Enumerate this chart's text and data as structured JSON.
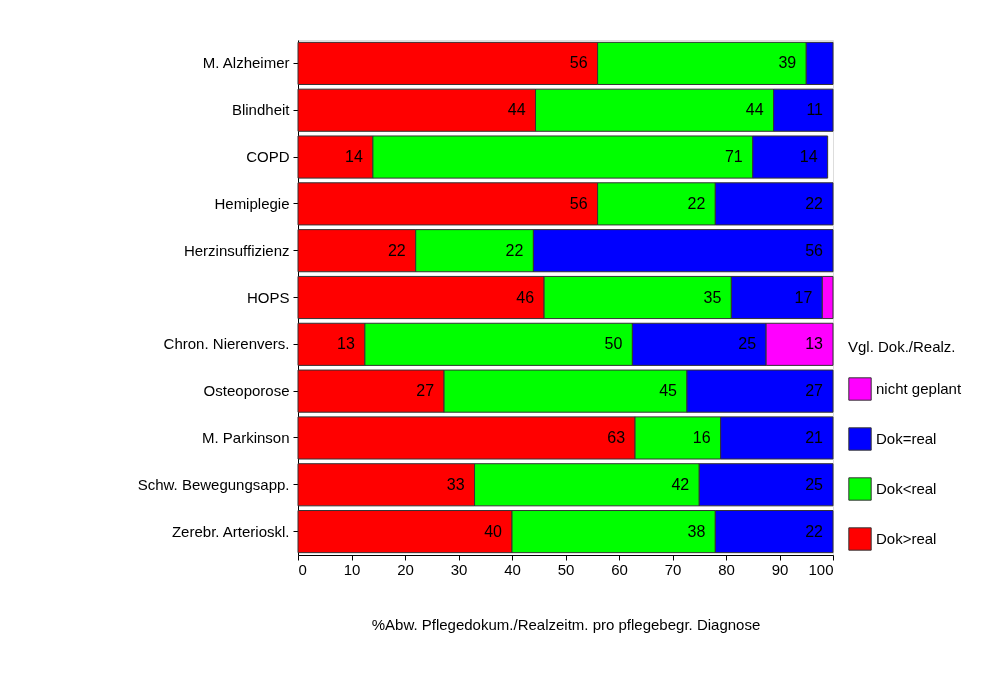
{
  "chart_data": {
    "type": "bar",
    "orientation": "horizontal",
    "stacked": true,
    "xlabel": "%Abw. Pflegedokum./Realzeitm. pro pflegebegr. Diagnose",
    "legend_title": "Vgl. Dok./Realz.",
    "legend": "right",
    "grid": false,
    "categories": [
      "M. Alzheimer",
      "Blindheit",
      "COPD",
      "Hemiplegie",
      "Herzinsuffizienz",
      "HOPS",
      "Chron. Nierenvers.",
      "Osteoporose",
      "M. Parkinson",
      "Schw. Bewegungsapp.",
      "Zerebr. Arterioskl."
    ],
    "xlim": [
      0,
      100
    ],
    "xticks": [
      0,
      10,
      20,
      30,
      40,
      50,
      60,
      70,
      80,
      90,
      100
    ],
    "series": [
      {
        "name": "Dok>real",
        "color": "#ff0000",
        "values": [
          56,
          44.4,
          14,
          56,
          22,
          46,
          12.5,
          27.3,
          63,
          33,
          40
        ],
        "value_labels": [
          "56",
          "44",
          "14",
          "56",
          "22",
          "46",
          "13",
          "27",
          "63",
          "33",
          "40"
        ]
      },
      {
        "name": "Dok<real",
        "color": "#00ff00",
        "values": [
          39,
          44.5,
          71,
          22,
          22,
          35,
          50,
          45.4,
          16,
          42,
          38
        ],
        "value_labels": [
          "39",
          "44",
          "71",
          "22",
          "22",
          "35",
          "50",
          "45",
          "16",
          "42",
          "38"
        ]
      },
      {
        "name": "Dok=real",
        "color": "#0000ff",
        "values": [
          5,
          11.1,
          14,
          22,
          56,
          17,
          25,
          27.3,
          21,
          25,
          22
        ],
        "value_labels": [
          null,
          "11",
          "14",
          "22",
          "56",
          "17",
          "25",
          "27",
          "21",
          "25",
          "22"
        ]
      },
      {
        "name": "nicht geplant",
        "color": "#ff00ff",
        "values": [
          null,
          null,
          null,
          null,
          null,
          2,
          12.5,
          null,
          null,
          null,
          null
        ],
        "value_labels": [
          null,
          null,
          null,
          null,
          null,
          null,
          "13",
          null,
          null,
          null,
          null
        ]
      }
    ]
  }
}
